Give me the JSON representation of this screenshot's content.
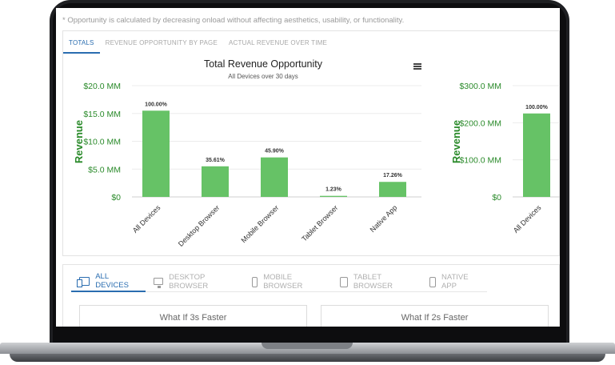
{
  "note": "* Opportunity is calculated by decreasing onload without affecting aesthetics, usability, or functionality.",
  "tabs": [
    {
      "label": "TOTALS"
    },
    {
      "label": "REVENUE OPPORTUNITY BY PAGE"
    },
    {
      "label": "ACTUAL REVENUE OVER TIME"
    }
  ],
  "chart": {
    "title": "Total Revenue Opportunity",
    "subtitle": "All Devices over 30 days",
    "ylabel": "Revenue"
  },
  "chart_data": [
    {
      "type": "bar",
      "title": "Total Revenue Opportunity",
      "subtitle": "All Devices over 30 days",
      "ylabel": "Revenue",
      "ylim": [
        0,
        20
      ],
      "yticks": [
        "$0",
        "$5.0 MM",
        "$10.0 MM",
        "$15.0 MM",
        "$20.0 MM"
      ],
      "categories": [
        "All Devices",
        "Desktop Browser",
        "Mobile Browser",
        "Tablet Browser",
        "Native App"
      ],
      "values": [
        15.5,
        5.5,
        7.1,
        0.19,
        2.7
      ],
      "data_labels": [
        "100.00%",
        "35.61%",
        "45.90%",
        "1.23%",
        "17.26%"
      ],
      "color": "#66c266",
      "grid": true
    },
    {
      "type": "bar",
      "ylabel": "Revenue",
      "ylim": [
        0,
        300
      ],
      "yticks": [
        "$0",
        "$100.0 MM",
        "$200.0 MM",
        "$300.0 MM"
      ],
      "categories": [
        "All Devices"
      ],
      "values": [
        225
      ],
      "data_labels": [
        "100.00%"
      ],
      "color": "#66c266",
      "grid": true
    }
  ],
  "device_tabs": [
    {
      "label": "ALL DEVICES",
      "icon": "all-devices-icon"
    },
    {
      "label": "DESKTOP BROWSER",
      "icon": "desktop-icon"
    },
    {
      "label": "MOBILE BROWSER",
      "icon": "mobile-icon"
    },
    {
      "label": "TABLET BROWSER",
      "icon": "tablet-icon"
    },
    {
      "label": "NATIVE APP",
      "icon": "native-app-icon"
    }
  ],
  "whatif": [
    {
      "label": "What If 3s Faster"
    },
    {
      "label": "What If 2s Faster"
    }
  ],
  "colors": {
    "accent": "#2a6db0",
    "bar": "#66c266",
    "axis_text": "#2a8a2a"
  }
}
